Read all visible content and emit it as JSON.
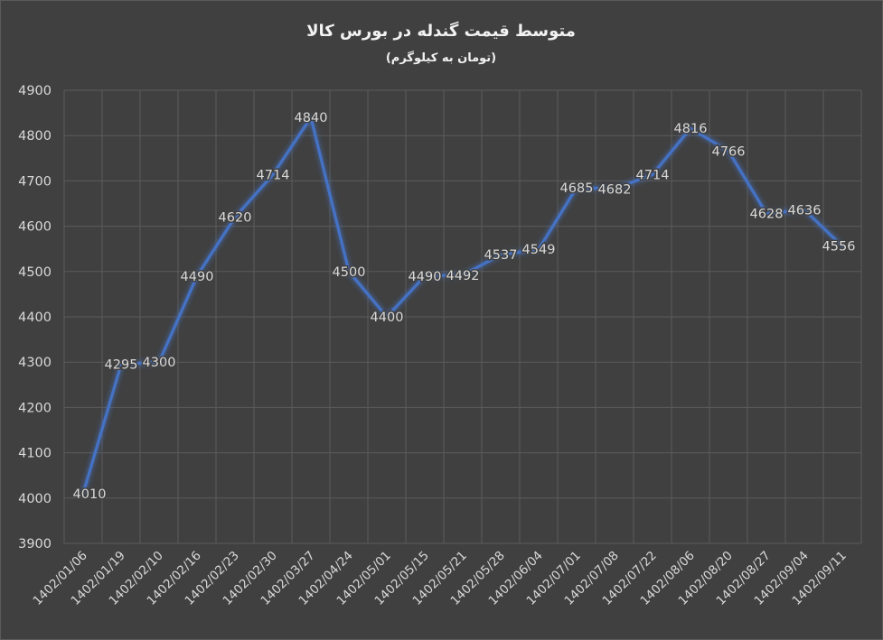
{
  "chart_data": {
    "type": "line",
    "title": "متوسط قیمت گندله در بورس کالا",
    "subtitle": "(تومان به کیلوگرم)",
    "xlabel": "",
    "ylabel": "",
    "ylim": [
      3900,
      4900
    ],
    "yticks": [
      3900,
      4000,
      4100,
      4200,
      4300,
      4400,
      4500,
      4600,
      4700,
      4800,
      4900
    ],
    "grid": true,
    "legend": "none",
    "line_color": "#4472c4",
    "categories": [
      "1402/01/06",
      "1402/01/19",
      "1402/02/10",
      "1402/02/16",
      "1402/02/23",
      "1402/02/30",
      "1402/03/27",
      "1402/04/24",
      "1402/05/01",
      "1402/05/15",
      "1402/05/21",
      "1402/05/28",
      "1402/06/04",
      "1402/07/01",
      "1402/07/08",
      "1402/07/22",
      "1402/08/06",
      "1402/08/20",
      "1402/08/27",
      "1402/09/04",
      "1402/09/11"
    ],
    "series": [
      {
        "values": [
          4010,
          4295,
          4300,
          4490,
          4620,
          4714,
          4840,
          4500,
          4400,
          4490,
          4492,
          4537,
          4549,
          4685,
          4682,
          4714,
          4816,
          4766,
          4628,
          4636,
          4556
        ]
      }
    ]
  }
}
